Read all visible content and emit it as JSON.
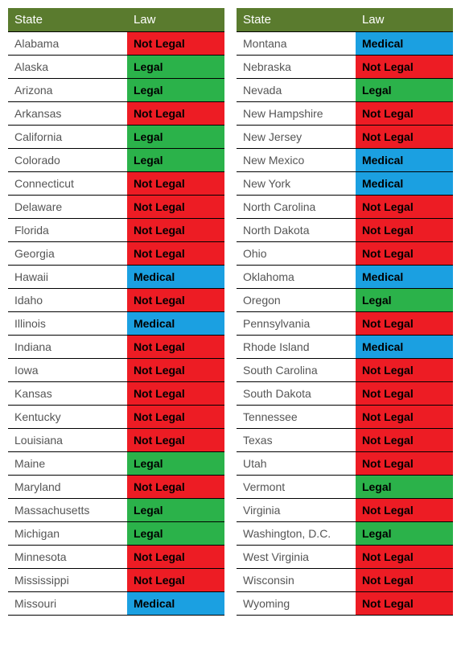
{
  "headers": {
    "state": "State",
    "law": "Law"
  },
  "colors": {
    "header_bg": "#5a7b2e",
    "legal": "#2bb24a",
    "not_legal": "#ed1c24",
    "medical": "#1ba0e1"
  },
  "labels": {
    "legal": "Legal",
    "not_legal": "Not Legal",
    "medical": "Medical"
  },
  "left": [
    {
      "state": "Alabama",
      "law": "not_legal"
    },
    {
      "state": "Alaska",
      "law": "legal"
    },
    {
      "state": "Arizona",
      "law": "legal"
    },
    {
      "state": "Arkansas",
      "law": "not_legal"
    },
    {
      "state": "California",
      "law": "legal"
    },
    {
      "state": "Colorado",
      "law": "legal"
    },
    {
      "state": "Connecticut",
      "law": "not_legal"
    },
    {
      "state": "Delaware",
      "law": "not_legal"
    },
    {
      "state": "Florida",
      "law": "not_legal"
    },
    {
      "state": "Georgia",
      "law": "not_legal"
    },
    {
      "state": "Hawaii",
      "law": "medical"
    },
    {
      "state": "Idaho",
      "law": "not_legal"
    },
    {
      "state": "Illinois",
      "law": "medical"
    },
    {
      "state": "Indiana",
      "law": "not_legal"
    },
    {
      "state": "Iowa",
      "law": "not_legal"
    },
    {
      "state": "Kansas",
      "law": "not_legal"
    },
    {
      "state": "Kentucky",
      "law": "not_legal"
    },
    {
      "state": "Louisiana",
      "law": "not_legal"
    },
    {
      "state": "Maine",
      "law": "legal"
    },
    {
      "state": "Maryland",
      "law": "not_legal"
    },
    {
      "state": "Massachusetts",
      "law": "legal"
    },
    {
      "state": "Michigan",
      "law": "legal"
    },
    {
      "state": "Minnesota",
      "law": "not_legal"
    },
    {
      "state": "Mississippi",
      "law": "not_legal"
    },
    {
      "state": "Missouri",
      "law": "medical"
    }
  ],
  "right": [
    {
      "state": "Montana",
      "law": "medical"
    },
    {
      "state": "Nebraska",
      "law": "not_legal"
    },
    {
      "state": "Nevada",
      "law": "legal"
    },
    {
      "state": "New Hampshire",
      "law": "not_legal"
    },
    {
      "state": "New Jersey",
      "law": "not_legal"
    },
    {
      "state": "New Mexico",
      "law": "medical"
    },
    {
      "state": "New York",
      "law": "medical"
    },
    {
      "state": "North Carolina",
      "law": "not_legal"
    },
    {
      "state": "North Dakota",
      "law": "not_legal"
    },
    {
      "state": "Ohio",
      "law": "not_legal"
    },
    {
      "state": "Oklahoma",
      "law": "medical"
    },
    {
      "state": "Oregon",
      "law": "legal"
    },
    {
      "state": "Pennsylvania",
      "law": "not_legal"
    },
    {
      "state": "Rhode Island",
      "law": "medical"
    },
    {
      "state": "South Carolina",
      "law": "not_legal"
    },
    {
      "state": "South Dakota",
      "law": "not_legal"
    },
    {
      "state": "Tennessee",
      "law": "not_legal"
    },
    {
      "state": "Texas",
      "law": "not_legal"
    },
    {
      "state": "Utah",
      "law": "not_legal"
    },
    {
      "state": "Vermont",
      "law": "legal"
    },
    {
      "state": "Virginia",
      "law": "not_legal"
    },
    {
      "state": "Washington, D.C.",
      "law": "legal"
    },
    {
      "state": "West Virginia",
      "law": "not_legal"
    },
    {
      "state": "Wisconsin",
      "law": "not_legal"
    },
    {
      "state": "Wyoming",
      "law": "not_legal"
    }
  ]
}
